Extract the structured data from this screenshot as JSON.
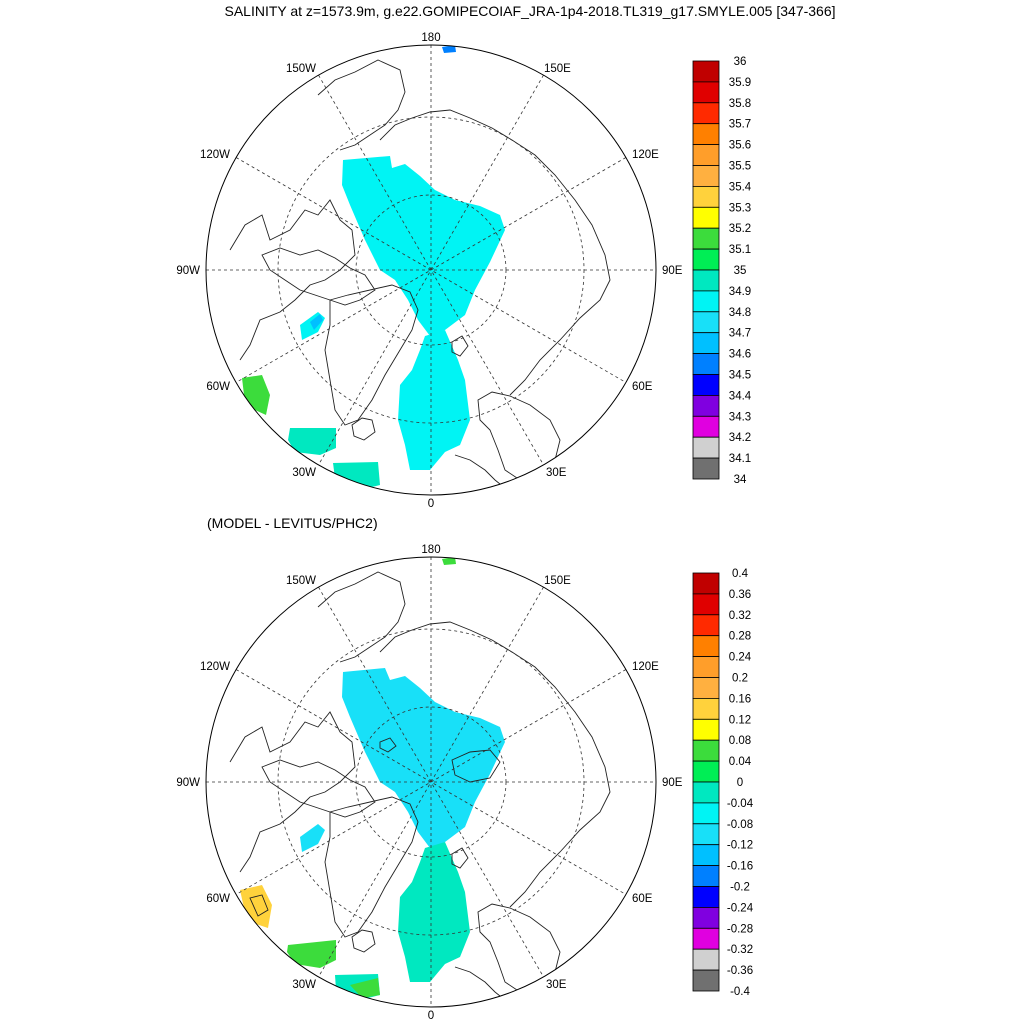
{
  "title": "SALINITY at z=1573.9m, g.e22.GOMIPECOIAF_JRA-1p4-2018.TL319_g17.SMYLE.005 [347-366]",
  "diff_title": "(MODEL - LEVITUS/PHC2)",
  "lon_labels": {
    "l180": "180",
    "l150E": "150E",
    "l120E": "120E",
    "l90E": "90E",
    "l60E": "60E",
    "l30E": "30E",
    "l0": "0",
    "l30W": "30W",
    "l60W": "60W",
    "l90W": "90W",
    "l120W": "120W",
    "l150W": "150W"
  },
  "top_colorbar": {
    "labels": [
      "36",
      "35.9",
      "35.8",
      "35.7",
      "35.6",
      "35.5",
      "35.4",
      "35.3",
      "35.2",
      "35.1",
      "35",
      "34.9",
      "34.8",
      "34.7",
      "34.6",
      "34.5",
      "34.4",
      "34.3",
      "34.2",
      "34.1",
      "34"
    ]
  },
  "bottom_colorbar": {
    "labels": [
      "0.4",
      "0.36",
      "0.32",
      "0.28",
      "0.24",
      "0.2",
      "0.16",
      "0.12",
      "0.08",
      "0.04",
      "0",
      "-0.04",
      "-0.08",
      "-0.12",
      "-0.16",
      "-0.2",
      "-0.24",
      "-0.28",
      "-0.32",
      "-0.36",
      "-0.4"
    ]
  },
  "palette": [
    "#c00000",
    "#e00000",
    "#ff2a00",
    "#ff8000",
    "#ff9e2a",
    "#ffb040",
    "#ffd23c",
    "#ffff00",
    "#3cdc3c",
    "#00ee55",
    "#00e8c0",
    "#00f4f4",
    "#18e0f8",
    "#00c0ff",
    "#0080ff",
    "#0000ff",
    "#8000e0",
    "#e000e0",
    "#d0d0d0",
    "#707070"
  ]
}
